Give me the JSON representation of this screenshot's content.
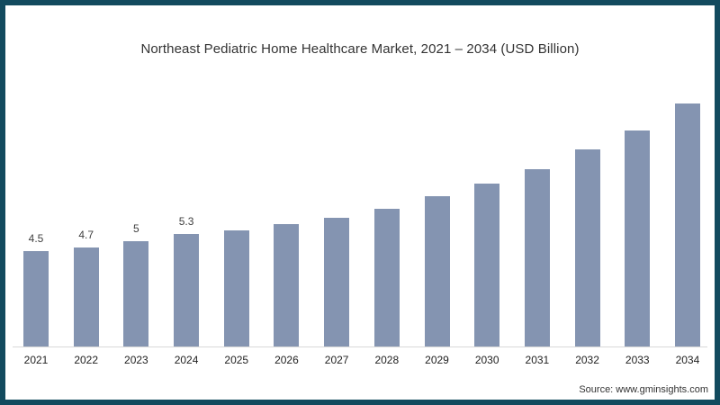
{
  "title": "Northeast Pediatric Home Healthcare Market, 2021 – 2034 (USD Billion)",
  "source": "Source: www.gminsights.com",
  "colors": {
    "bar": "#8494b1",
    "frame_border": "#124a5e",
    "axis_line": "#d9d9d9",
    "title_text": "#333333",
    "label_text": "#404040",
    "tick_text": "#222222"
  },
  "chart_data": {
    "type": "bar",
    "title": "Northeast Pediatric Home Healthcare Market, 2021 – 2034 (USD Billion)",
    "xlabel": "",
    "ylabel": "",
    "unit": "USD Billion",
    "categories": [
      "2021",
      "2022",
      "2023",
      "2024",
      "2025",
      "2026",
      "2027",
      "2028",
      "2029",
      "2030",
      "2031",
      "2032",
      "2033",
      "2034"
    ],
    "values": [
      4.5,
      4.7,
      5.0,
      5.3,
      5.5,
      5.8,
      6.1,
      6.5,
      7.1,
      7.7,
      8.4,
      9.3,
      10.2,
      11.5
    ],
    "value_labels": [
      "4.5",
      "4.7",
      "5",
      "5.3",
      "",
      "",
      "",
      "",
      "",
      "",
      "",
      "",
      "",
      ""
    ],
    "ylim": [
      0,
      12
    ],
    "grid": "off",
    "legend": "none",
    "y_axis_ticks": "hidden",
    "bar_color": "#8494b1"
  }
}
